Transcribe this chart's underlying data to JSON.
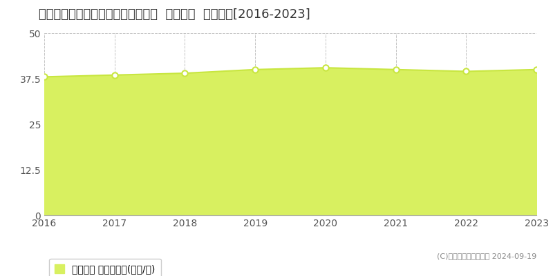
{
  "title": "愛知県春日井市篠木町１丁目３４番  公示地価  地価推移[2016-2023]",
  "years": [
    2016,
    2017,
    2018,
    2019,
    2020,
    2021,
    2022,
    2023
  ],
  "values": [
    38.0,
    38.5,
    39.0,
    40.0,
    40.5,
    40.0,
    39.5,
    40.0
  ],
  "line_color": "#c8e640",
  "fill_color": "#d8f060",
  "marker_color": "#ffffff",
  "marker_edge_color": "#c8e640",
  "ylim": [
    0,
    50
  ],
  "yticks": [
    0,
    12.5,
    25,
    37.5,
    50
  ],
  "xlabel": "",
  "ylabel": "",
  "legend_label": "公示地価 平均坪単価(万円/坪)",
  "copyright_text": "(C)土地価格ドットコム 2024-09-19",
  "background_color": "#ffffff",
  "plot_bg_color": "#ffffff",
  "grid_color": "#aaaaaa",
  "title_fontsize": 13,
  "tick_fontsize": 10,
  "legend_fontsize": 10
}
